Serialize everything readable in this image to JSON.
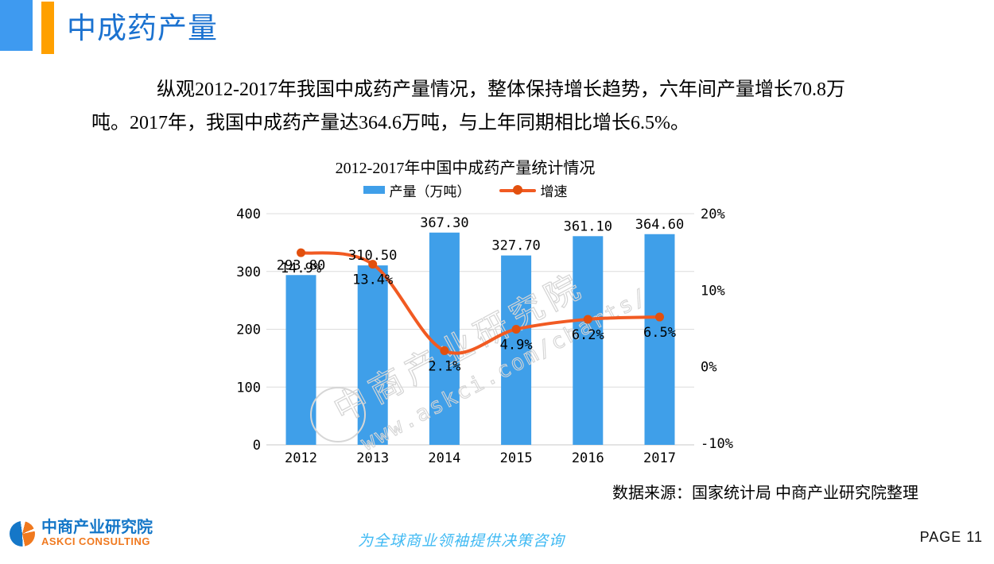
{
  "header": {
    "title": "中成药产量"
  },
  "intro": {
    "lines": [
      "纵观2012-2017年我国中成药产量情况，整体保持增长趋势，六年间产量增长70.8万",
      "吨。2017年，我国中成药产量达364.6万吨，与上年同期相比增长6.5%。"
    ]
  },
  "chart_data": {
    "type": "bar",
    "title": "2012-2017年中国中成药产量统计情况",
    "categories": [
      "2012",
      "2013",
      "2014",
      "2015",
      "2016",
      "2017"
    ],
    "series": [
      {
        "name": "产量（万吨）",
        "type": "bar",
        "axis": "left",
        "color": "#3F9FE9",
        "values": [
          293.8,
          310.5,
          367.3,
          327.7,
          361.1,
          364.6
        ],
        "labels": [
          "293.80",
          "310.50",
          "367.30",
          "327.70",
          "361.10",
          "364.60"
        ]
      },
      {
        "name": "增速",
        "type": "line",
        "axis": "right",
        "color": "#F15A22",
        "marker_color": "#E2500E",
        "values": [
          14.9,
          13.4,
          2.1,
          4.9,
          6.2,
          6.5
        ],
        "labels": [
          "14.9%",
          "13.4%",
          "2.1%",
          "4.9%",
          "6.2%",
          "6.5%"
        ]
      }
    ],
    "left_axis": {
      "min": 0,
      "max": 400,
      "ticks": [
        0,
        100,
        200,
        300,
        400
      ],
      "tick_labels": [
        "0",
        "100",
        "200",
        "300",
        "400"
      ]
    },
    "right_axis": {
      "min": -10,
      "max": 20,
      "ticks": [
        -10,
        0,
        10,
        20
      ],
      "tick_labels": [
        "-10%",
        "0%",
        "10%",
        "20%"
      ]
    },
    "grid": true,
    "legend_position": "top",
    "watermark": {
      "text_cn": "中商产业研究院",
      "text_url": "www.askci.com/charts/"
    }
  },
  "source": "数据来源：国家统计局 中商产业研究院整理",
  "footer": {
    "logo_cn": "中商产业研究院",
    "logo_en": "ASKCI CONSULTING",
    "tagline": "为全球商业领袖提供决策咨询",
    "page": "PAGE 11"
  },
  "colors": {
    "accent_blue": "#3E9AF0",
    "accent_orange": "#FFA000",
    "title_blue": "#1B72D0",
    "bar_blue": "#3F9FE9",
    "line_orange": "#F15A22",
    "marker_orange": "#E2500E",
    "grid_gray": "#DCDCDC",
    "watermark_gray": "#D4D4D4",
    "logo_blue": "#1577C8",
    "logo_orange": "#F0791F",
    "tagline_blue": "#41BAF3"
  }
}
